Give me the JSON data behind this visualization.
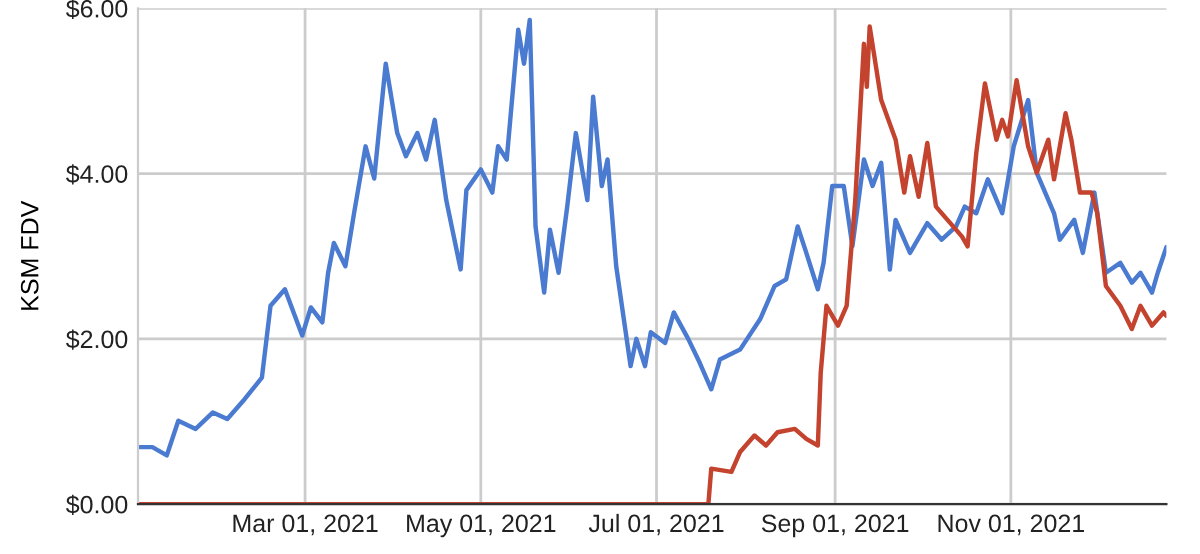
{
  "chart_data": {
    "type": "line",
    "ylabel": "KSM FDV",
    "xlim": [
      "2021-01-02",
      "2021-12-25"
    ],
    "ylim": [
      0,
      6
    ],
    "yticks": [
      {
        "value": 0,
        "label": "$0.00"
      },
      {
        "value": 2,
        "label": "$2.00"
      },
      {
        "value": 4,
        "label": "$4.00"
      },
      {
        "value": 6,
        "label": "$6.00"
      }
    ],
    "xticks": [
      {
        "value": "2021-03-01",
        "label": "Mar 01, 2021"
      },
      {
        "value": "2021-05-01",
        "label": "May 01, 2021"
      },
      {
        "value": "2021-07-01",
        "label": "Jul 01, 2021"
      },
      {
        "value": "2021-09-01",
        "label": "Sep 01, 2021"
      },
      {
        "value": "2021-11-01",
        "label": "Nov 01, 2021"
      }
    ],
    "grid": true,
    "marker": "none",
    "line_style": "solid",
    "series": [
      {
        "color": "#4a7bd0",
        "x": [
          "2021-01-02",
          "2021-01-07",
          "2021-01-12",
          "2021-01-16",
          "2021-01-22",
          "2021-01-28",
          "2021-02-02",
          "2021-02-08",
          "2021-02-14",
          "2021-02-17",
          "2021-02-22",
          "2021-02-28",
          "2021-03-03",
          "2021-03-07",
          "2021-03-09",
          "2021-03-11",
          "2021-03-15",
          "2021-03-18",
          "2021-03-22",
          "2021-03-25",
          "2021-03-29",
          "2021-04-02",
          "2021-04-05",
          "2021-04-09",
          "2021-04-12",
          "2021-04-15",
          "2021-04-19",
          "2021-04-24",
          "2021-04-26",
          "2021-05-01",
          "2021-05-05",
          "2021-05-07",
          "2021-05-10",
          "2021-05-14",
          "2021-05-16",
          "2021-05-18",
          "2021-05-20",
          "2021-05-23",
          "2021-05-25",
          "2021-05-28",
          "2021-05-31",
          "2021-06-03",
          "2021-06-07",
          "2021-06-09",
          "2021-06-12",
          "2021-06-14",
          "2021-06-17",
          "2021-06-22",
          "2021-06-24",
          "2021-06-27",
          "2021-06-29",
          "2021-07-04",
          "2021-07-07",
          "2021-07-12",
          "2021-07-16",
          "2021-07-20",
          "2021-07-23",
          "2021-07-30",
          "2021-08-06",
          "2021-08-11",
          "2021-08-15",
          "2021-08-19",
          "2021-08-22",
          "2021-08-26",
          "2021-08-28",
          "2021-08-31",
          "2021-09-04",
          "2021-09-07",
          "2021-09-11",
          "2021-09-14",
          "2021-09-17",
          "2021-09-20",
          "2021-09-22",
          "2021-09-27",
          "2021-10-03",
          "2021-10-08",
          "2021-10-13",
          "2021-10-16",
          "2021-10-20",
          "2021-10-24",
          "2021-10-29",
          "2021-11-02",
          "2021-11-07",
          "2021-11-10",
          "2021-11-16",
          "2021-11-18",
          "2021-11-23",
          "2021-11-26",
          "2021-11-30",
          "2021-12-04",
          "2021-12-09",
          "2021-12-13",
          "2021-12-16",
          "2021-12-20",
          "2021-12-22",
          "2021-12-25"
        ],
        "values": [
          0.69,
          0.69,
          0.59,
          1.01,
          0.91,
          1.11,
          1.03,
          1.27,
          1.53,
          2.4,
          2.6,
          2.04,
          2.38,
          2.2,
          2.8,
          3.16,
          2.88,
          3.52,
          4.33,
          3.94,
          5.33,
          4.49,
          4.21,
          4.49,
          4.17,
          4.65,
          3.68,
          2.84,
          3.8,
          4.05,
          3.77,
          4.33,
          4.17,
          5.74,
          5.33,
          5.86,
          3.36,
          2.56,
          3.32,
          2.8,
          3.6,
          4.49,
          3.68,
          4.93,
          3.85,
          4.17,
          2.88,
          1.67,
          2.0,
          1.67,
          2.08,
          1.95,
          2.32,
          2.0,
          1.71,
          1.39,
          1.75,
          1.87,
          2.24,
          2.64,
          2.72,
          3.36,
          3.04,
          2.6,
          2.92,
          3.85,
          3.85,
          3.12,
          4.17,
          3.85,
          4.13,
          2.84,
          3.44,
          3.04,
          3.4,
          3.2,
          3.36,
          3.6,
          3.52,
          3.93,
          3.52,
          4.33,
          4.89,
          4.01,
          3.52,
          3.2,
          3.44,
          3.04,
          3.77,
          2.8,
          2.92,
          2.68,
          2.8,
          2.56,
          2.8,
          3.11
        ]
      },
      {
        "color": "#c4432e",
        "x": [
          "2021-01-02",
          "2021-07-19",
          "2021-07-20",
          "2021-07-27",
          "2021-07-30",
          "2021-08-04",
          "2021-08-08",
          "2021-08-12",
          "2021-08-18",
          "2021-08-22",
          "2021-08-26",
          "2021-08-27",
          "2021-08-29",
          "2021-09-02",
          "2021-09-05",
          "2021-09-08",
          "2021-09-11",
          "2021-09-12",
          "2021-09-13",
          "2021-09-17",
          "2021-09-22",
          "2021-09-25",
          "2021-09-27",
          "2021-09-30",
          "2021-10-03",
          "2021-10-06",
          "2021-10-10",
          "2021-10-15",
          "2021-10-17",
          "2021-10-20",
          "2021-10-23",
          "2021-10-27",
          "2021-10-29",
          "2021-10-31",
          "2021-11-03",
          "2021-11-07",
          "2021-11-10",
          "2021-11-14",
          "2021-11-16",
          "2021-11-20",
          "2021-11-22",
          "2021-11-25",
          "2021-11-29",
          "2021-12-01",
          "2021-12-04",
          "2021-12-09",
          "2021-12-13",
          "2021-12-16",
          "2021-12-20",
          "2021-12-24",
          "2021-12-25"
        ],
        "values": [
          0,
          0,
          0.43,
          0.39,
          0.63,
          0.83,
          0.71,
          0.87,
          0.91,
          0.79,
          0.71,
          1.59,
          2.4,
          2.16,
          2.4,
          3.68,
          5.57,
          5.05,
          5.78,
          4.89,
          4.41,
          3.77,
          4.21,
          3.72,
          4.37,
          3.6,
          3.44,
          3.24,
          3.12,
          4.25,
          5.09,
          4.41,
          4.65,
          4.45,
          5.13,
          4.33,
          4.01,
          4.41,
          3.93,
          4.73,
          4.41,
          3.77,
          3.77,
          3.52,
          2.64,
          2.4,
          2.12,
          2.4,
          2.16,
          2.32,
          2.28
        ]
      }
    ]
  }
}
